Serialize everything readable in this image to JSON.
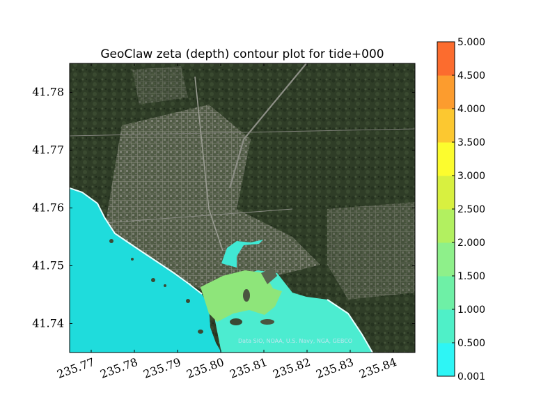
{
  "chart_data": {
    "type": "heatmap",
    "title": "GeoClaw zeta (depth) contour plot for tide+000",
    "xlim": [
      235.765,
      235.845
    ],
    "ylim": [
      41.735,
      41.785
    ],
    "x_ticks": [
      "235.77",
      "235.78",
      "235.79",
      "235.80",
      "235.81",
      "235.82",
      "235.83",
      "235.84"
    ],
    "x_tick_values": [
      235.77,
      235.78,
      235.79,
      235.8,
      235.81,
      235.82,
      235.83,
      235.84
    ],
    "y_ticks": [
      "41.78",
      "41.77",
      "41.76",
      "41.75",
      "41.74"
    ],
    "y_tick_values": [
      41.78,
      41.77,
      41.76,
      41.75,
      41.74
    ],
    "basemap_credit": "Data SIO, NOAA, U.S. Navy, NGA, GEBCO",
    "colorbar": {
      "levels": [
        0.001,
        0.5,
        1.0,
        1.5,
        2.0,
        2.5,
        3.0,
        3.5,
        4.0,
        4.5,
        5.0
      ],
      "labels": [
        "0.001",
        "0.500",
        "1.000",
        "1.500",
        "2.000",
        "2.500",
        "3.000",
        "3.500",
        "4.000",
        "4.500",
        "5.000"
      ],
      "colors": [
        "#2ef5f5",
        "#4ff0c8",
        "#6ef0a6",
        "#8ef08a",
        "#b2f060",
        "#d8f040",
        "#fcfc2e",
        "#fcc830",
        "#fc9c2e",
        "#fc6c2e",
        "#fc3a30"
      ]
    }
  }
}
